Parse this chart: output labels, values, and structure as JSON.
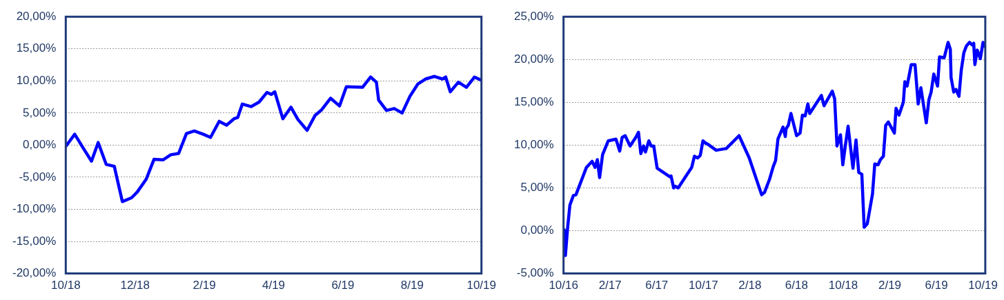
{
  "chart_data": [
    {
      "type": "line",
      "color": "#0000ff",
      "grid": "y",
      "xlim": [
        "2018-10",
        "2019-10"
      ],
      "ylim": [
        -20,
        20
      ],
      "xticks": [
        {
          "value": "2018-10",
          "label": "10/18"
        },
        {
          "value": "2018-12",
          "label": "12/18"
        },
        {
          "value": "2019-02",
          "label": "2/19"
        },
        {
          "value": "2019-04",
          "label": "4/19"
        },
        {
          "value": "2019-06",
          "label": "6/19"
        },
        {
          "value": "2019-08",
          "label": "8/19"
        },
        {
          "value": "2019-10",
          "label": "10/19"
        }
      ],
      "yticks": [
        {
          "value": -20,
          "label": "-20,00%"
        },
        {
          "value": -15,
          "label": "-15,00%"
        },
        {
          "value": -10,
          "label": "-10,00%"
        },
        {
          "value": -5,
          "label": "-5,00%"
        },
        {
          "value": 0,
          "label": "0,00%"
        },
        {
          "value": 5,
          "label": "5,00%"
        },
        {
          "value": 10,
          "label": "10,00%"
        },
        {
          "value": 15,
          "label": "15,00%"
        },
        {
          "value": 20,
          "label": "20,00%"
        }
      ],
      "x": [
        "2018-10-01",
        "2018-10-09",
        "2018-10-16",
        "2018-10-24",
        "2018-10-30",
        "2018-11-06",
        "2018-11-13",
        "2018-11-20",
        "2018-11-28",
        "2018-12-03",
        "2018-12-11",
        "2018-12-18",
        "2018-12-26",
        "2019-01-02",
        "2019-01-09",
        "2019-01-16",
        "2019-01-23",
        "2019-01-31",
        "2019-02-06",
        "2019-02-13",
        "2019-02-19",
        "2019-02-25",
        "2019-02-28",
        "2019-03-04",
        "2019-03-12",
        "2019-03-19",
        "2019-03-26",
        "2019-03-30",
        "2019-04-02",
        "2019-04-09",
        "2019-04-16",
        "2019-04-22",
        "2019-04-30",
        "2019-05-07",
        "2019-05-13",
        "2019-05-21",
        "2019-05-29",
        "2019-06-04",
        "2019-06-18",
        "2019-06-25",
        "2019-06-30",
        "2019-07-02",
        "2019-07-09",
        "2019-07-16",
        "2019-07-23",
        "2019-07-30",
        "2019-08-06",
        "2019-08-13",
        "2019-08-21",
        "2019-08-28",
        "2019-08-31",
        "2019-09-04",
        "2019-09-11",
        "2019-09-18",
        "2019-09-25",
        "2019-10-01"
      ],
      "values": [
        -0.2,
        1.7,
        -0.3,
        -2.5,
        0.4,
        -3.0,
        -3.3,
        -8.8,
        -8.2,
        -7.3,
        -5.3,
        -2.2,
        -2.3,
        -1.5,
        -1.3,
        1.8,
        2.2,
        1.7,
        1.2,
        3.7,
        3.1,
        4.1,
        4.3,
        6.4,
        6.0,
        6.7,
        8.2,
        7.9,
        8.3,
        4.1,
        5.9,
        4.0,
        2.3,
        4.6,
        5.5,
        7.3,
        6.1,
        9.1,
        9.0,
        10.6,
        9.8,
        7.0,
        5.4,
        5.7,
        5.0,
        7.6,
        9.5,
        10.3,
        10.7,
        10.3,
        10.6,
        8.3,
        9.8,
        9.0,
        10.6,
        10.1
      ]
    },
    {
      "type": "line",
      "color": "#0000ff",
      "grid": "y",
      "xlim": [
        "2016-10",
        "2019-10-07"
      ],
      "ylim": [
        -5,
        25
      ],
      "xticks": [
        {
          "value": "2016-10",
          "label": "10/16"
        },
        {
          "value": "2017-02",
          "label": "2/17"
        },
        {
          "value": "2017-06",
          "label": "6/17"
        },
        {
          "value": "2017-10",
          "label": "10/17"
        },
        {
          "value": "2018-02",
          "label": "2/18"
        },
        {
          "value": "2018-06",
          "label": "6/18"
        },
        {
          "value": "2018-10",
          "label": "10/18"
        },
        {
          "value": "2019-02",
          "label": "2/19"
        },
        {
          "value": "2019-06",
          "label": "6/19"
        },
        {
          "value": "2019-10",
          "label": "10/19"
        }
      ],
      "yticks": [
        {
          "value": -5,
          "label": "-5,00%"
        },
        {
          "value": 0,
          "label": "0,00%"
        },
        {
          "value": 5,
          "label": "5,00%"
        },
        {
          "value": 10,
          "label": "10,00%"
        },
        {
          "value": 15,
          "label": "15,00%"
        },
        {
          "value": 20,
          "label": "20,00%"
        },
        {
          "value": 25,
          "label": "25,00%"
        }
      ],
      "x": [
        "2016-10-03",
        "2016-10-06",
        "2016-10-12",
        "2016-10-18",
        "2016-10-27",
        "2016-11-03",
        "2016-11-30",
        "2016-12-15",
        "2016-12-23",
        "2016-12-29",
        "2017-01-04",
        "2017-01-12",
        "2017-01-27",
        "2017-02-15",
        "2017-02-24",
        "2017-03-02",
        "2017-03-10",
        "2017-03-23",
        "2017-04-07",
        "2017-04-14",
        "2017-04-20",
        "2017-04-27",
        "2017-05-02",
        "2017-05-11",
        "2017-05-17",
        "2017-05-24",
        "2017-06-02",
        "2017-07-05",
        "2017-07-08",
        "2017-07-15",
        "2017-07-19",
        "2017-07-27",
        "2017-09-01",
        "2017-09-08",
        "2017-09-16",
        "2017-09-23",
        "2017-09-30",
        "2017-10-08",
        "2017-10-13",
        "2017-11-04",
        "2017-11-30",
        "2018-01-03",
        "2018-01-30",
        "2018-03-01",
        "2018-03-09",
        "2018-03-22",
        "2018-04-01",
        "2018-04-07",
        "2018-04-13",
        "2018-04-26",
        "2018-05-02",
        "2018-05-04",
        "2018-05-10",
        "2018-05-17",
        "2018-06-01",
        "2018-06-10",
        "2018-06-16",
        "2018-06-23",
        "2018-06-30",
        "2018-07-05",
        "2018-08-05",
        "2018-08-12",
        "2018-09-03",
        "2018-09-09",
        "2018-09-15",
        "2018-09-24",
        "2018-09-30",
        "2018-10-06",
        "2018-10-14",
        "2018-10-27",
        "2018-11-04",
        "2018-11-11",
        "2018-11-19",
        "2018-11-25",
        "2018-12-03",
        "2018-12-17",
        "2018-12-23",
        "2019-01-01",
        "2019-01-07",
        "2019-01-15",
        "2019-01-21",
        "2019-01-28",
        "2019-02-12",
        "2019-02-16",
        "2019-02-23",
        "2019-03-06",
        "2019-03-10",
        "2019-03-16",
        "2019-03-27",
        "2019-04-06",
        "2019-04-14",
        "2019-04-21",
        "2019-05-05",
        "2019-05-12",
        "2019-05-18",
        "2019-05-25",
        "2019-06-04",
        "2019-06-09",
        "2019-06-21",
        "2019-07-01",
        "2019-07-07",
        "2019-07-09",
        "2019-07-16",
        "2019-07-22",
        "2019-07-30",
        "2019-08-05",
        "2019-08-12",
        "2019-08-19",
        "2019-08-27",
        "2019-09-03",
        "2019-09-07",
        "2019-09-10",
        "2019-09-16",
        "2019-09-24",
        "2019-10-01",
        "2019-10-07"
      ],
      "values": [
        0.1,
        -2.9,
        0.4,
        3.0,
        4.1,
        4.2,
        7.4,
        8.1,
        7.4,
        8.3,
        6.2,
        8.9,
        10.5,
        10.7,
        9.3,
        10.9,
        11.1,
        9.9,
        10.9,
        11.5,
        9.0,
        9.9,
        9.2,
        10.5,
        9.9,
        9.9,
        7.3,
        6.3,
        6.4,
        5.0,
        5.2,
        5.0,
        7.4,
        8.7,
        8.5,
        8.8,
        10.5,
        10.2,
        10.1,
        9.4,
        9.6,
        11.1,
        8.5,
        4.2,
        4.5,
        6.0,
        7.5,
        8.2,
        10.7,
        12.1,
        11.0,
        11.9,
        12.3,
        13.7,
        11.1,
        11.4,
        13.5,
        13.4,
        14.8,
        13.7,
        15.8,
        14.6,
        16.3,
        15.4,
        9.9,
        11.2,
        7.7,
        9.7,
        12.2,
        7.3,
        10.6,
        6.8,
        6.6,
        0.4,
        0.8,
        4.3,
        7.8,
        7.7,
        8.3,
        8.7,
        12.3,
        12.7,
        11.4,
        14.3,
        13.5,
        15.0,
        17.4,
        16.9,
        19.4,
        19.4,
        14.8,
        16.7,
        12.6,
        15.3,
        16.2,
        18.3,
        16.9,
        20.3,
        20.2,
        22.0,
        21.2,
        17.9,
        16.2,
        16.5,
        15.7,
        18.7,
        20.8,
        21.6,
        22.0,
        21.7,
        21.9,
        19.4,
        21.1,
        20.1,
        22.0,
        21.5
      ]
    }
  ]
}
